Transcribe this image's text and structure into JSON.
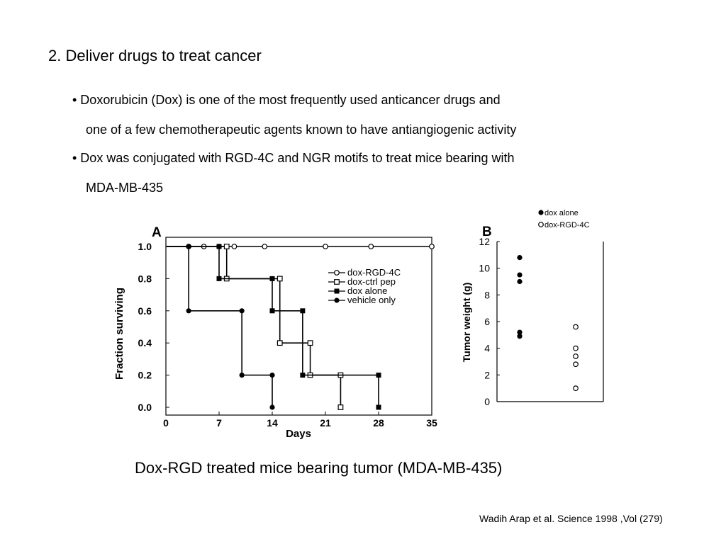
{
  "slide": {
    "heading": "2. Deliver drugs to treat cancer",
    "bullets": [
      "• Doxorubicin (Dox) is one of the most frequently used anticancer drugs and",
      "one of a few chemotherapeutic agents known to have antiangiogenic activity",
      "• Dox was conjugated with RGD-4C and NGR motifs to treat mice bearing with",
      "MDA-MB-435"
    ],
    "caption": "Dox-RGD treated mice bearing tumor (MDA-MB-435)",
    "citation": "Wadih Arap et al. Science 1998 ,Vol (279)"
  },
  "chart_data": [
    {
      "panel": "A",
      "type": "line",
      "xlabel": "Days",
      "ylabel": "Fraction surviving",
      "xlim": [
        0,
        35
      ],
      "ylim": [
        0,
        1.0
      ],
      "xticks": [
        "0",
        "7",
        "14",
        "21",
        "28",
        "35"
      ],
      "yticks": [
        "0.0",
        "0.2",
        "0.4",
        "0.6",
        "0.8",
        "1.0"
      ],
      "legend_position": "right-center",
      "series": [
        {
          "name": "dox-RGD-4C",
          "marker": "open-circle",
          "x": [
            0,
            3,
            5,
            7,
            9,
            13,
            21,
            27,
            35
          ],
          "y": [
            1.0,
            1.0,
            1.0,
            1.0,
            1.0,
            1.0,
            1.0,
            1.0,
            1.0
          ]
        },
        {
          "name": "dox-ctrl pep",
          "marker": "open-square",
          "x": [
            0,
            8,
            15,
            19,
            23
          ],
          "y": [
            1.0,
            0.8,
            0.4,
            0.2,
            0.0
          ]
        },
        {
          "name": "dox alone",
          "marker": "filled-square",
          "x": [
            0,
            7,
            14,
            18,
            28
          ],
          "y": [
            1.0,
            0.8,
            0.6,
            0.2,
            0.0
          ]
        },
        {
          "name": "vehicle only",
          "marker": "filled-circle",
          "x": [
            0,
            3,
            10,
            14
          ],
          "y": [
            1.0,
            0.6,
            0.2,
            0.0
          ]
        }
      ]
    },
    {
      "panel": "B",
      "type": "scatter",
      "ylabel": "Tumor weight (g)",
      "ylim": [
        0,
        12
      ],
      "yticks": [
        "0",
        "2",
        "4",
        "6",
        "8",
        "10",
        "12"
      ],
      "legend_position": "top",
      "series": [
        {
          "name": "dox alone",
          "marker": "filled-circle",
          "values": [
            10.8,
            9.5,
            9.0,
            5.2,
            4.9
          ]
        },
        {
          "name": "dox-RGD-4C",
          "marker": "open-circle",
          "values": [
            5.6,
            4.0,
            3.4,
            2.8,
            1.0
          ]
        }
      ]
    }
  ]
}
